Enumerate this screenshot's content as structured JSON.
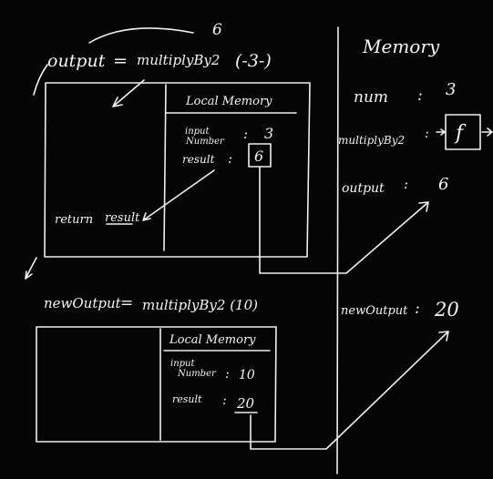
{
  "top_call": {
    "annotation": "6",
    "lhs": "output",
    "equals": "=",
    "fn": "multiplyBy2",
    "arg": "(-3-)"
  },
  "local_memory_1": {
    "title": "Local Memory",
    "input_label_1": "input",
    "input_label_2": "Number",
    "input_colon": ":",
    "input_value": "3",
    "result_label": "result",
    "result_colon": ":",
    "result_value": "6"
  },
  "return_line": {
    "keyword": "return",
    "value": "result"
  },
  "bottom_call": {
    "lhs": "newOutput",
    "equals": "=",
    "call": "multiplyBy2 (10)"
  },
  "local_memory_2": {
    "title": "Local Memory",
    "input_label_1": "input",
    "input_label_2": "Number",
    "input_colon": ":",
    "input_value": "10",
    "result_label": "result",
    "result_colon": ":",
    "result_value": "20"
  },
  "global_memory": {
    "title": "Memory",
    "num_label": "num",
    "num_colon": ":",
    "num_value": "3",
    "fn_label": "multiplyBy2",
    "fn_colon": ":",
    "fn_value": "f",
    "output_label": "output",
    "output_colon": ":",
    "output_value": "6",
    "newOutput_label": "newOutput",
    "newOutput_colon": ":",
    "newOutput_value": "20"
  }
}
